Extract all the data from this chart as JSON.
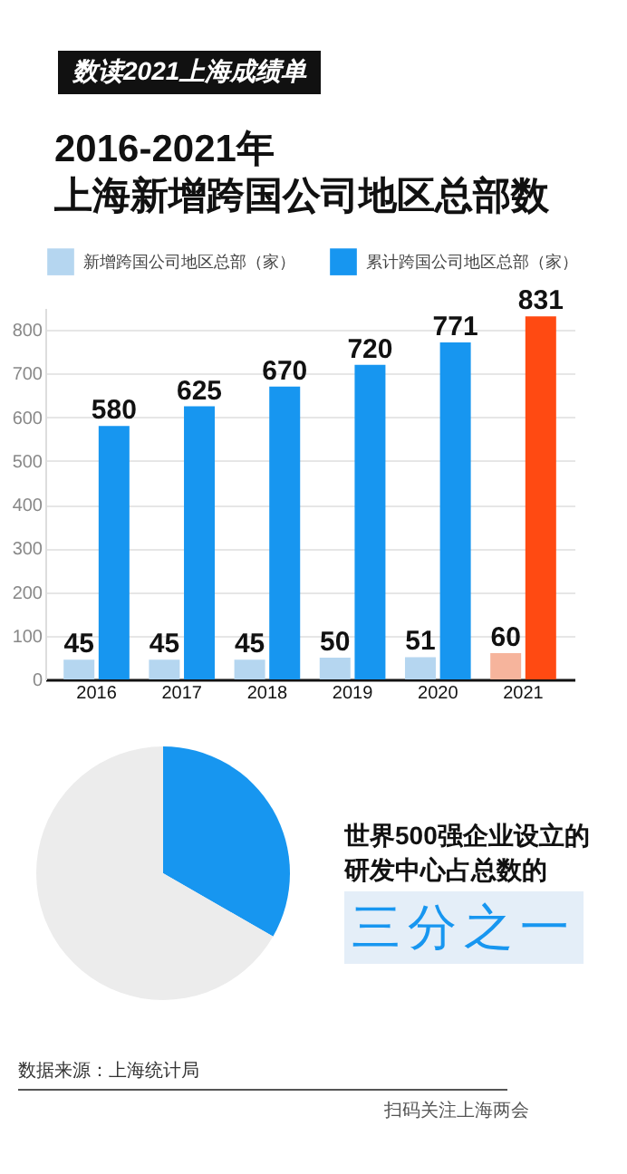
{
  "chart_data": [
    {
      "type": "bar",
      "title": "2016-2021年",
      "subtitle": "上海新增跨国公司地区总部数",
      "annotations": [
        "数读2021上海成绩单"
      ],
      "categories": [
        "2016",
        "2017",
        "2018",
        "2019",
        "2020",
        "2021"
      ],
      "series": [
        {
          "name": "新增跨国公司地区总部（家）",
          "color": "#b5d6f0",
          "colors": [
            "#b5d6f0",
            "#b5d6f0",
            "#b5d6f0",
            "#b5d6f0",
            "#b5d6f0",
            "#f6b49c"
          ],
          "values": [
            45,
            45,
            45,
            50,
            51,
            60
          ]
        },
        {
          "name": "累计跨国公司地区总部（家）",
          "color": "#1796f0",
          "colors": [
            "#1796f0",
            "#1796f0",
            "#1796f0",
            "#1796f0",
            "#1796f0",
            "#ff4a12"
          ],
          "values": [
            580,
            625,
            670,
            720,
            771,
            831
          ]
        }
      ],
      "ylim": [
        0,
        850
      ],
      "yticks": [
        0,
        100,
        200,
        300,
        400,
        500,
        600,
        700,
        800
      ],
      "grid": "y",
      "legend": "top",
      "data_labels": true
    },
    {
      "type": "pie",
      "categories": [
        null,
        null
      ],
      "values": [
        33.3,
        66.7
      ],
      "colors": [
        "#1796f0",
        "#ececec"
      ],
      "annotations": [
        "世界500强企业设立的研发中心占总数的",
        "三分之一",
        "数据来源：上海统计局",
        "扫码关注上海两会"
      ]
    }
  ]
}
